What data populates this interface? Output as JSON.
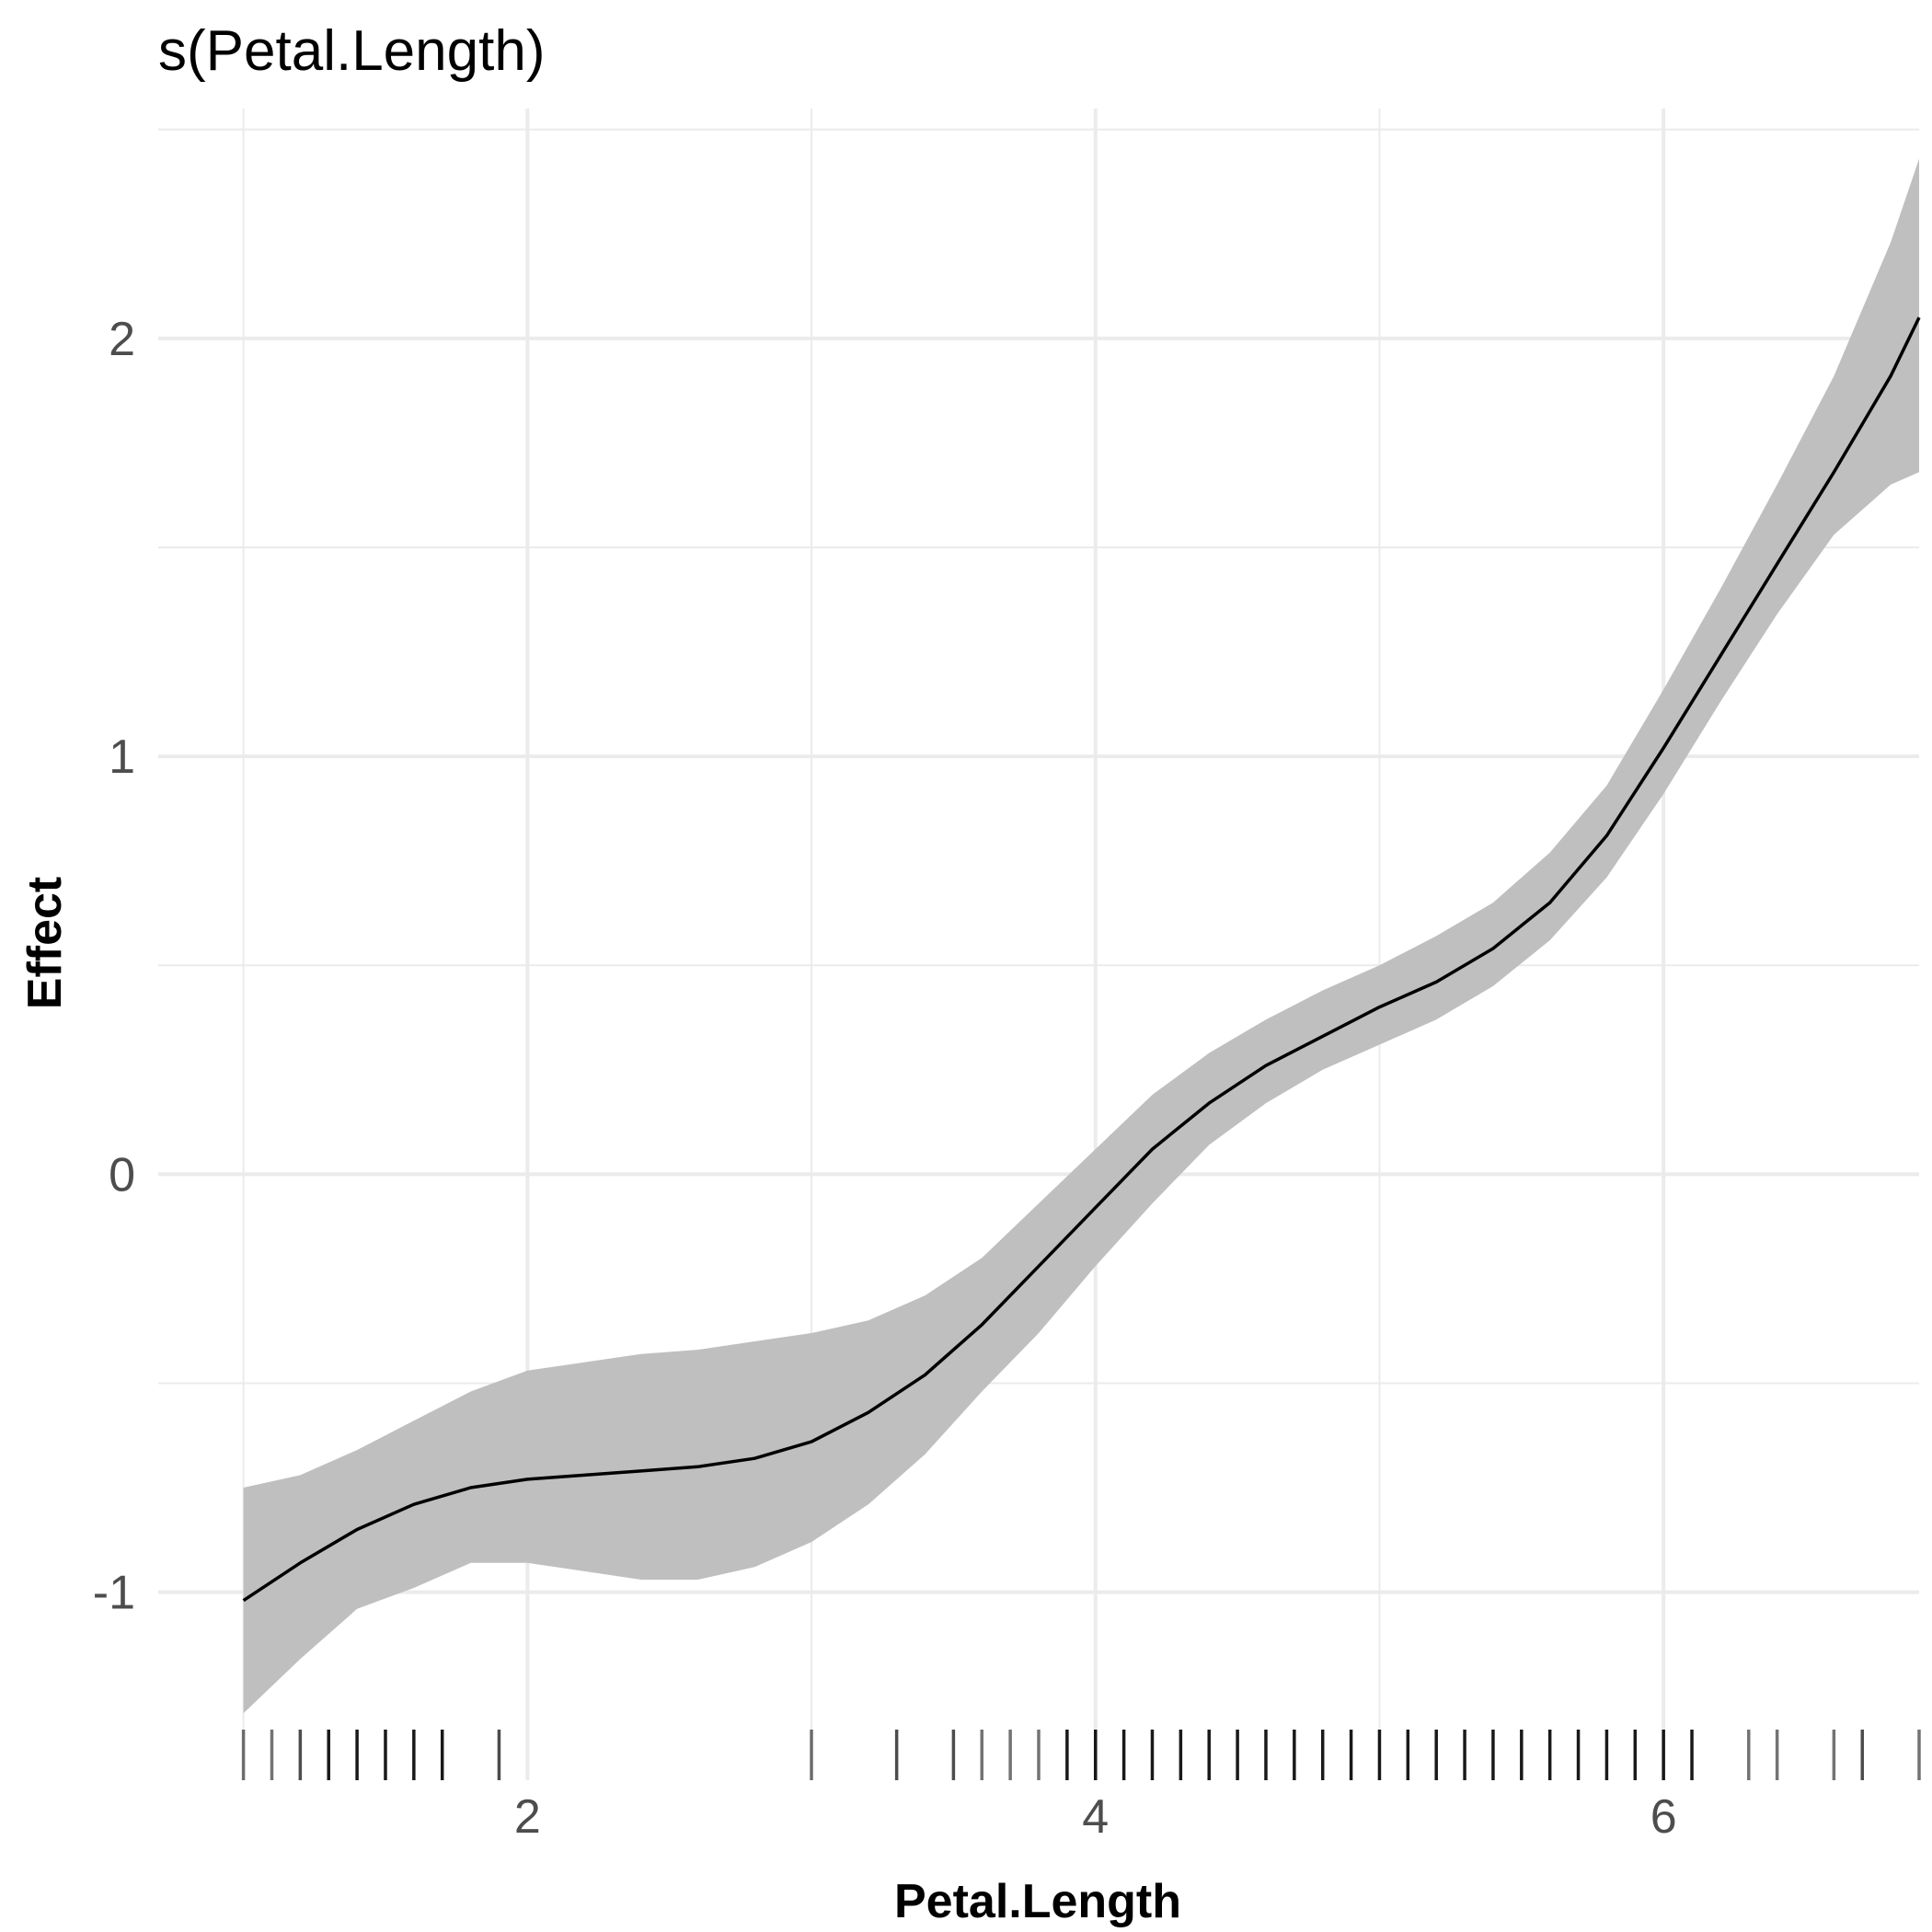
{
  "chart_data": {
    "type": "line",
    "title": "s(Petal.Length)",
    "xlabel": "Petal.Length",
    "ylabel": "Effect",
    "xlim": [
      0.7,
      6.9
    ],
    "ylim": [
      -1.45,
      2.55
    ],
    "x_ticks": [
      2,
      4,
      6
    ],
    "x_tick_labels": [
      "2",
      "4",
      "6"
    ],
    "x_minor": [
      1,
      3,
      5,
      7
    ],
    "y_ticks": [
      -1,
      0,
      1,
      2
    ],
    "y_tick_labels": [
      "-1",
      "0",
      "1",
      "2"
    ],
    "y_minor": [
      -0.5,
      0.5,
      1.5,
      2.5
    ],
    "grid": true,
    "legend": "none",
    "colors": {
      "line": "#000000",
      "band": "#bfbfbf",
      "grid": "#ebebeb",
      "rug": "#000000"
    },
    "series": [
      {
        "x": [
          1.0,
          1.2,
          1.4,
          1.6,
          1.8,
          2.0,
          2.2,
          2.4,
          2.6,
          2.8,
          3.0,
          3.2,
          3.4,
          3.6,
          3.8,
          4.0,
          4.2,
          4.4,
          4.6,
          4.8,
          5.0,
          5.2,
          5.4,
          5.6,
          5.8,
          6.0,
          6.2,
          6.4,
          6.6,
          6.8,
          6.9
        ],
        "y": [
          -1.02,
          -0.93,
          -0.85,
          -0.79,
          -0.75,
          -0.73,
          -0.72,
          -0.71,
          -0.7,
          -0.68,
          -0.64,
          -0.57,
          -0.48,
          -0.36,
          -0.22,
          -0.08,
          0.06,
          0.17,
          0.26,
          0.33,
          0.4,
          0.46,
          0.54,
          0.65,
          0.81,
          1.02,
          1.24,
          1.46,
          1.68,
          1.91,
          2.05
        ],
        "lower": [
          -1.29,
          -1.16,
          -1.04,
          -0.99,
          -0.93,
          -0.93,
          -0.95,
          -0.97,
          -0.97,
          -0.94,
          -0.88,
          -0.79,
          -0.67,
          -0.52,
          -0.38,
          -0.22,
          -0.07,
          0.07,
          0.17,
          0.25,
          0.31,
          0.37,
          0.45,
          0.56,
          0.71,
          0.91,
          1.13,
          1.34,
          1.53,
          1.65,
          1.68
        ],
        "upper": [
          -0.75,
          -0.72,
          -0.66,
          -0.59,
          -0.52,
          -0.47,
          -0.45,
          -0.43,
          -0.42,
          -0.4,
          -0.38,
          -0.35,
          -0.29,
          -0.2,
          -0.07,
          0.06,
          0.19,
          0.29,
          0.37,
          0.44,
          0.5,
          0.57,
          0.65,
          0.77,
          0.93,
          1.16,
          1.4,
          1.65,
          1.91,
          2.23,
          2.43
        ]
      }
    ],
    "rug": [
      1.0,
      1.1,
      1.2,
      1.3,
      1.4,
      1.5,
      1.6,
      1.7,
      1.9,
      3.0,
      3.3,
      3.5,
      3.6,
      3.7,
      3.8,
      3.9,
      4.0,
      4.1,
      4.2,
      4.3,
      4.4,
      4.5,
      4.6,
      4.7,
      4.8,
      4.9,
      5.0,
      5.1,
      5.2,
      5.3,
      5.4,
      5.5,
      5.6,
      5.7,
      5.8,
      5.9,
      6.0,
      6.1,
      6.3,
      6.4,
      6.6,
      6.7,
      6.9
    ],
    "rug_opacity": [
      0.55,
      0.55,
      0.7,
      0.9,
      0.9,
      0.9,
      0.9,
      0.9,
      0.7,
      0.55,
      0.7,
      0.7,
      0.55,
      0.55,
      0.55,
      0.9,
      0.9,
      0.9,
      0.9,
      0.9,
      0.9,
      0.9,
      0.9,
      0.9,
      0.9,
      0.9,
      0.9,
      0.9,
      0.9,
      0.9,
      0.9,
      0.9,
      0.9,
      0.9,
      0.9,
      0.9,
      0.9,
      0.9,
      0.55,
      0.55,
      0.55,
      0.7,
      0.55
    ]
  }
}
